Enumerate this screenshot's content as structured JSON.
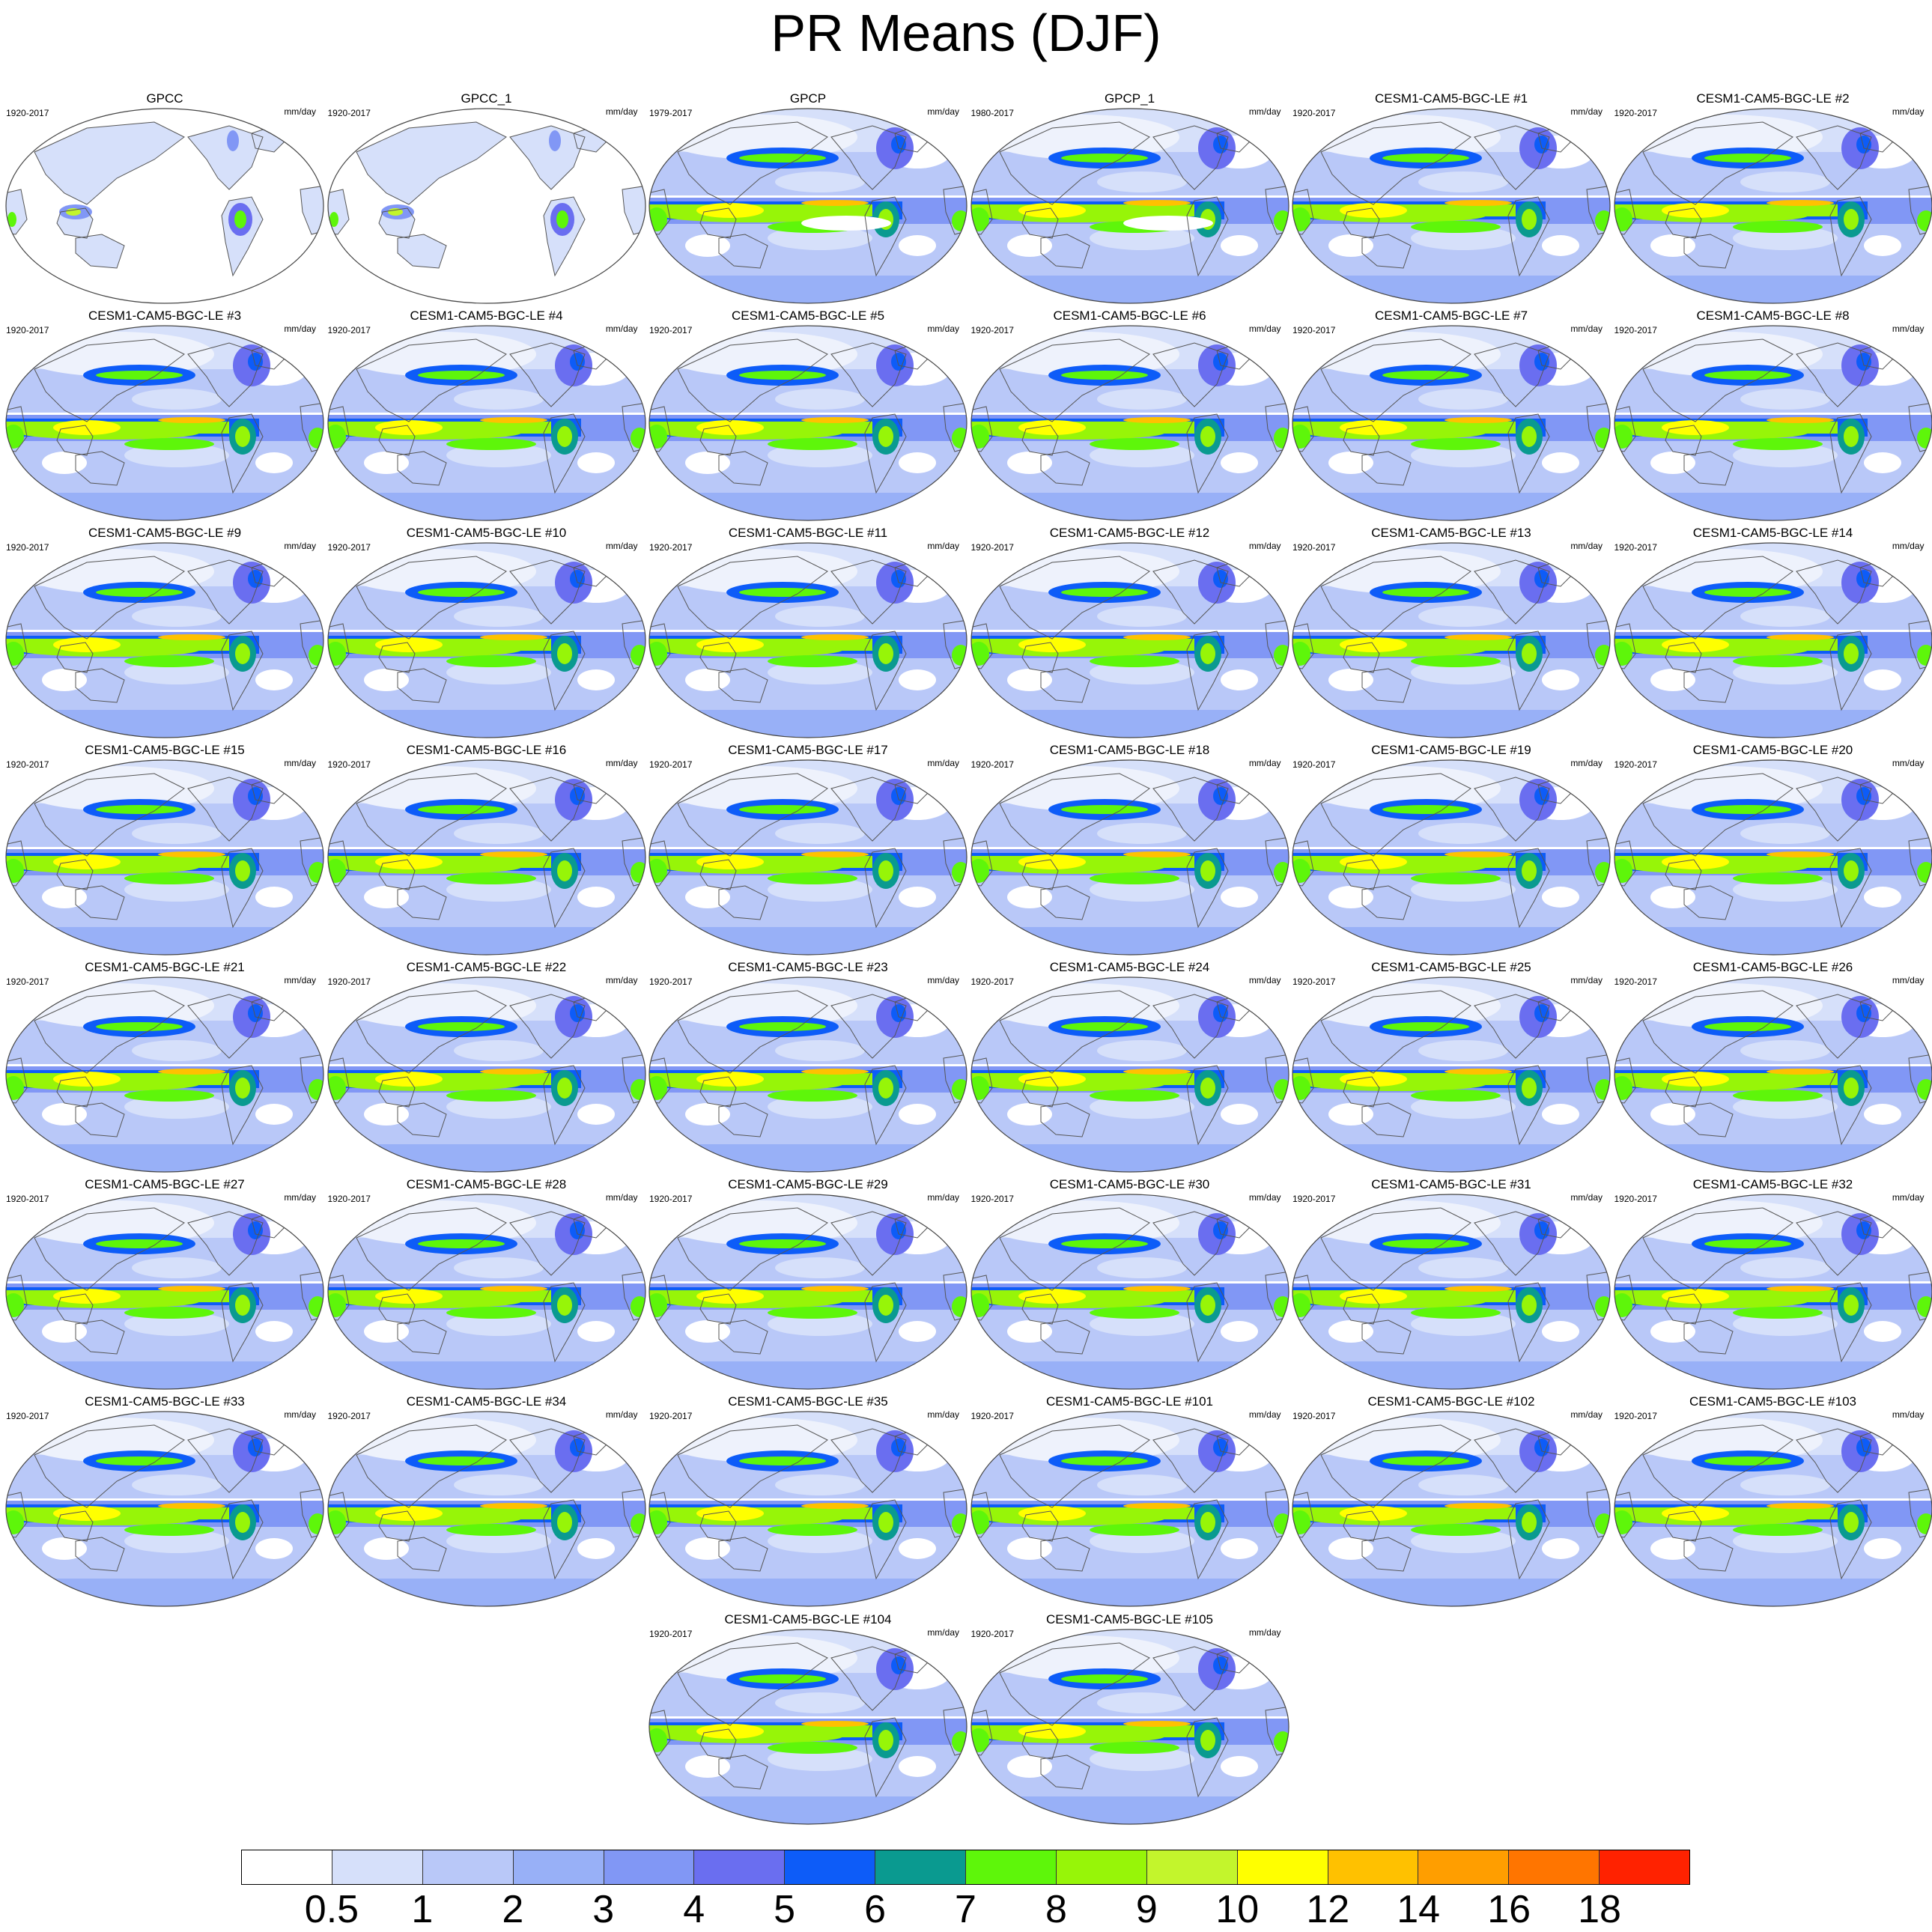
{
  "title": "PR Means (DJF)",
  "units_label": "mm/day",
  "panels": [
    {
      "name": "GPCC",
      "years": "1920-2017",
      "type": "obs_land"
    },
    {
      "name": "GPCC_1",
      "years": "1920-2017",
      "type": "obs_land"
    },
    {
      "name": "GPCP",
      "years": "1979-2017",
      "type": "obs_full"
    },
    {
      "name": "GPCP_1",
      "years": "1980-2017",
      "type": "obs_full"
    },
    {
      "name": "CESM1-CAM5-BGC-LE #1",
      "years": "1920-2017",
      "type": "model"
    },
    {
      "name": "CESM1-CAM5-BGC-LE #2",
      "years": "1920-2017",
      "type": "model"
    },
    {
      "name": "CESM1-CAM5-BGC-LE #3",
      "years": "1920-2017",
      "type": "model"
    },
    {
      "name": "CESM1-CAM5-BGC-LE #4",
      "years": "1920-2017",
      "type": "model"
    },
    {
      "name": "CESM1-CAM5-BGC-LE #5",
      "years": "1920-2017",
      "type": "model"
    },
    {
      "name": "CESM1-CAM5-BGC-LE #6",
      "years": "1920-2017",
      "type": "model"
    },
    {
      "name": "CESM1-CAM5-BGC-LE #7",
      "years": "1920-2017",
      "type": "model"
    },
    {
      "name": "CESM1-CAM5-BGC-LE #8",
      "years": "1920-2017",
      "type": "model"
    },
    {
      "name": "CESM1-CAM5-BGC-LE #9",
      "years": "1920-2017",
      "type": "model"
    },
    {
      "name": "CESM1-CAM5-BGC-LE #10",
      "years": "1920-2017",
      "type": "model"
    },
    {
      "name": "CESM1-CAM5-BGC-LE #11",
      "years": "1920-2017",
      "type": "model"
    },
    {
      "name": "CESM1-CAM5-BGC-LE #12",
      "years": "1920-2017",
      "type": "model"
    },
    {
      "name": "CESM1-CAM5-BGC-LE #13",
      "years": "1920-2017",
      "type": "model"
    },
    {
      "name": "CESM1-CAM5-BGC-LE #14",
      "years": "1920-2017",
      "type": "model"
    },
    {
      "name": "CESM1-CAM5-BGC-LE #15",
      "years": "1920-2017",
      "type": "model"
    },
    {
      "name": "CESM1-CAM5-BGC-LE #16",
      "years": "1920-2017",
      "type": "model"
    },
    {
      "name": "CESM1-CAM5-BGC-LE #17",
      "years": "1920-2017",
      "type": "model"
    },
    {
      "name": "CESM1-CAM5-BGC-LE #18",
      "years": "1920-2017",
      "type": "model"
    },
    {
      "name": "CESM1-CAM5-BGC-LE #19",
      "years": "1920-2017",
      "type": "model"
    },
    {
      "name": "CESM1-CAM5-BGC-LE #20",
      "years": "1920-2017",
      "type": "model"
    },
    {
      "name": "CESM1-CAM5-BGC-LE #21",
      "years": "1920-2017",
      "type": "model"
    },
    {
      "name": "CESM1-CAM5-BGC-LE #22",
      "years": "1920-2017",
      "type": "model"
    },
    {
      "name": "CESM1-CAM5-BGC-LE #23",
      "years": "1920-2017",
      "type": "model"
    },
    {
      "name": "CESM1-CAM5-BGC-LE #24",
      "years": "1920-2017",
      "type": "model"
    },
    {
      "name": "CESM1-CAM5-BGC-LE #25",
      "years": "1920-2017",
      "type": "model"
    },
    {
      "name": "CESM1-CAM5-BGC-LE #26",
      "years": "1920-2017",
      "type": "model"
    },
    {
      "name": "CESM1-CAM5-BGC-LE #27",
      "years": "1920-2017",
      "type": "model"
    },
    {
      "name": "CESM1-CAM5-BGC-LE #28",
      "years": "1920-2017",
      "type": "model"
    },
    {
      "name": "CESM1-CAM5-BGC-LE #29",
      "years": "1920-2017",
      "type": "model"
    },
    {
      "name": "CESM1-CAM5-BGC-LE #30",
      "years": "1920-2017",
      "type": "model"
    },
    {
      "name": "CESM1-CAM5-BGC-LE #31",
      "years": "1920-2017",
      "type": "model"
    },
    {
      "name": "CESM1-CAM5-BGC-LE #32",
      "years": "1920-2017",
      "type": "model"
    },
    {
      "name": "CESM1-CAM5-BGC-LE #33",
      "years": "1920-2017",
      "type": "model"
    },
    {
      "name": "CESM1-CAM5-BGC-LE #34",
      "years": "1920-2017",
      "type": "model"
    },
    {
      "name": "CESM1-CAM5-BGC-LE #35",
      "years": "1920-2017",
      "type": "model"
    },
    {
      "name": "CESM1-CAM5-BGC-LE #101",
      "years": "1920-2017",
      "type": "model"
    },
    {
      "name": "CESM1-CAM5-BGC-LE #102",
      "years": "1920-2017",
      "type": "model"
    },
    {
      "name": "CESM1-CAM5-BGC-LE #103",
      "years": "1920-2017",
      "type": "model"
    },
    {
      "name": "CESM1-CAM5-BGC-LE #104",
      "years": "1920-2017",
      "type": "model"
    },
    {
      "name": "CESM1-CAM5-BGC-LE #105",
      "years": "1920-2017",
      "type": "model"
    }
  ],
  "colorbar": {
    "colors": [
      "#ffffff",
      "#d6e0fa",
      "#b9c8f8",
      "#98b0f7",
      "#8197f5",
      "#6a6ef0",
      "#0d5cf8",
      "#0a9a90",
      "#5ef60a",
      "#97f508",
      "#c3f52c",
      "#ffff00",
      "#ffc100",
      "#ff9e00",
      "#ff7500",
      "#ff2200"
    ],
    "labels": [
      "0.5",
      "1",
      "2",
      "3",
      "4",
      "5",
      "6",
      "7",
      "8",
      "9",
      "10",
      "12",
      "14",
      "16",
      "18"
    ]
  }
}
